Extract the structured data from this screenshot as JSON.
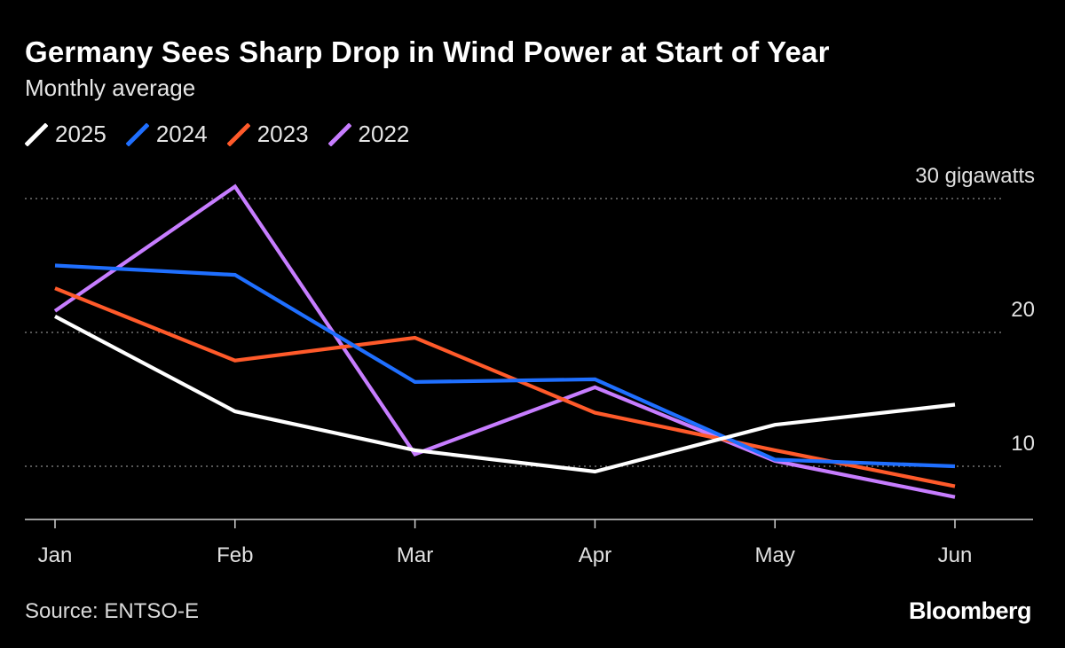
{
  "title": "Germany Sees Sharp Drop in Wind Power at Start of Year",
  "subtitle": "Monthly average",
  "legend": [
    {
      "label": "2025",
      "color": "#ffffff"
    },
    {
      "label": "2024",
      "color": "#1f6fff"
    },
    {
      "label": "2023",
      "color": "#ff5a2a"
    },
    {
      "label": "2022",
      "color": "#c77dff"
    }
  ],
  "source": "Source: ENTSO-E",
  "brand": "Bloomberg",
  "chart_data": {
    "type": "line",
    "title": "Germany Sees Sharp Drop in Wind Power at Start of Year",
    "subtitle": "Monthly average",
    "categories": [
      "Jan",
      "Feb",
      "Mar",
      "Apr",
      "May",
      "Jun"
    ],
    "ylabel": "gigawatts",
    "ylim": [
      6,
      30
    ],
    "yticks": [
      {
        "value": 30,
        "label": "30 gigawatts"
      },
      {
        "value": 20,
        "label": "20"
      },
      {
        "value": 10,
        "label": "10"
      }
    ],
    "grid": true,
    "series": [
      {
        "name": "2025",
        "color": "#ffffff",
        "values": [
          21.2,
          14.1,
          11.2,
          9.6,
          13.1,
          14.6
        ]
      },
      {
        "name": "2024",
        "color": "#1f6fff",
        "values": [
          25.0,
          24.3,
          16.3,
          16.5,
          10.5,
          10.0
        ]
      },
      {
        "name": "2023",
        "color": "#ff5a2a",
        "values": [
          23.3,
          17.9,
          19.6,
          14.0,
          11.2,
          8.5
        ]
      },
      {
        "name": "2022",
        "color": "#c77dff",
        "values": [
          21.6,
          30.9,
          10.9,
          15.9,
          10.4,
          7.7
        ]
      }
    ]
  }
}
